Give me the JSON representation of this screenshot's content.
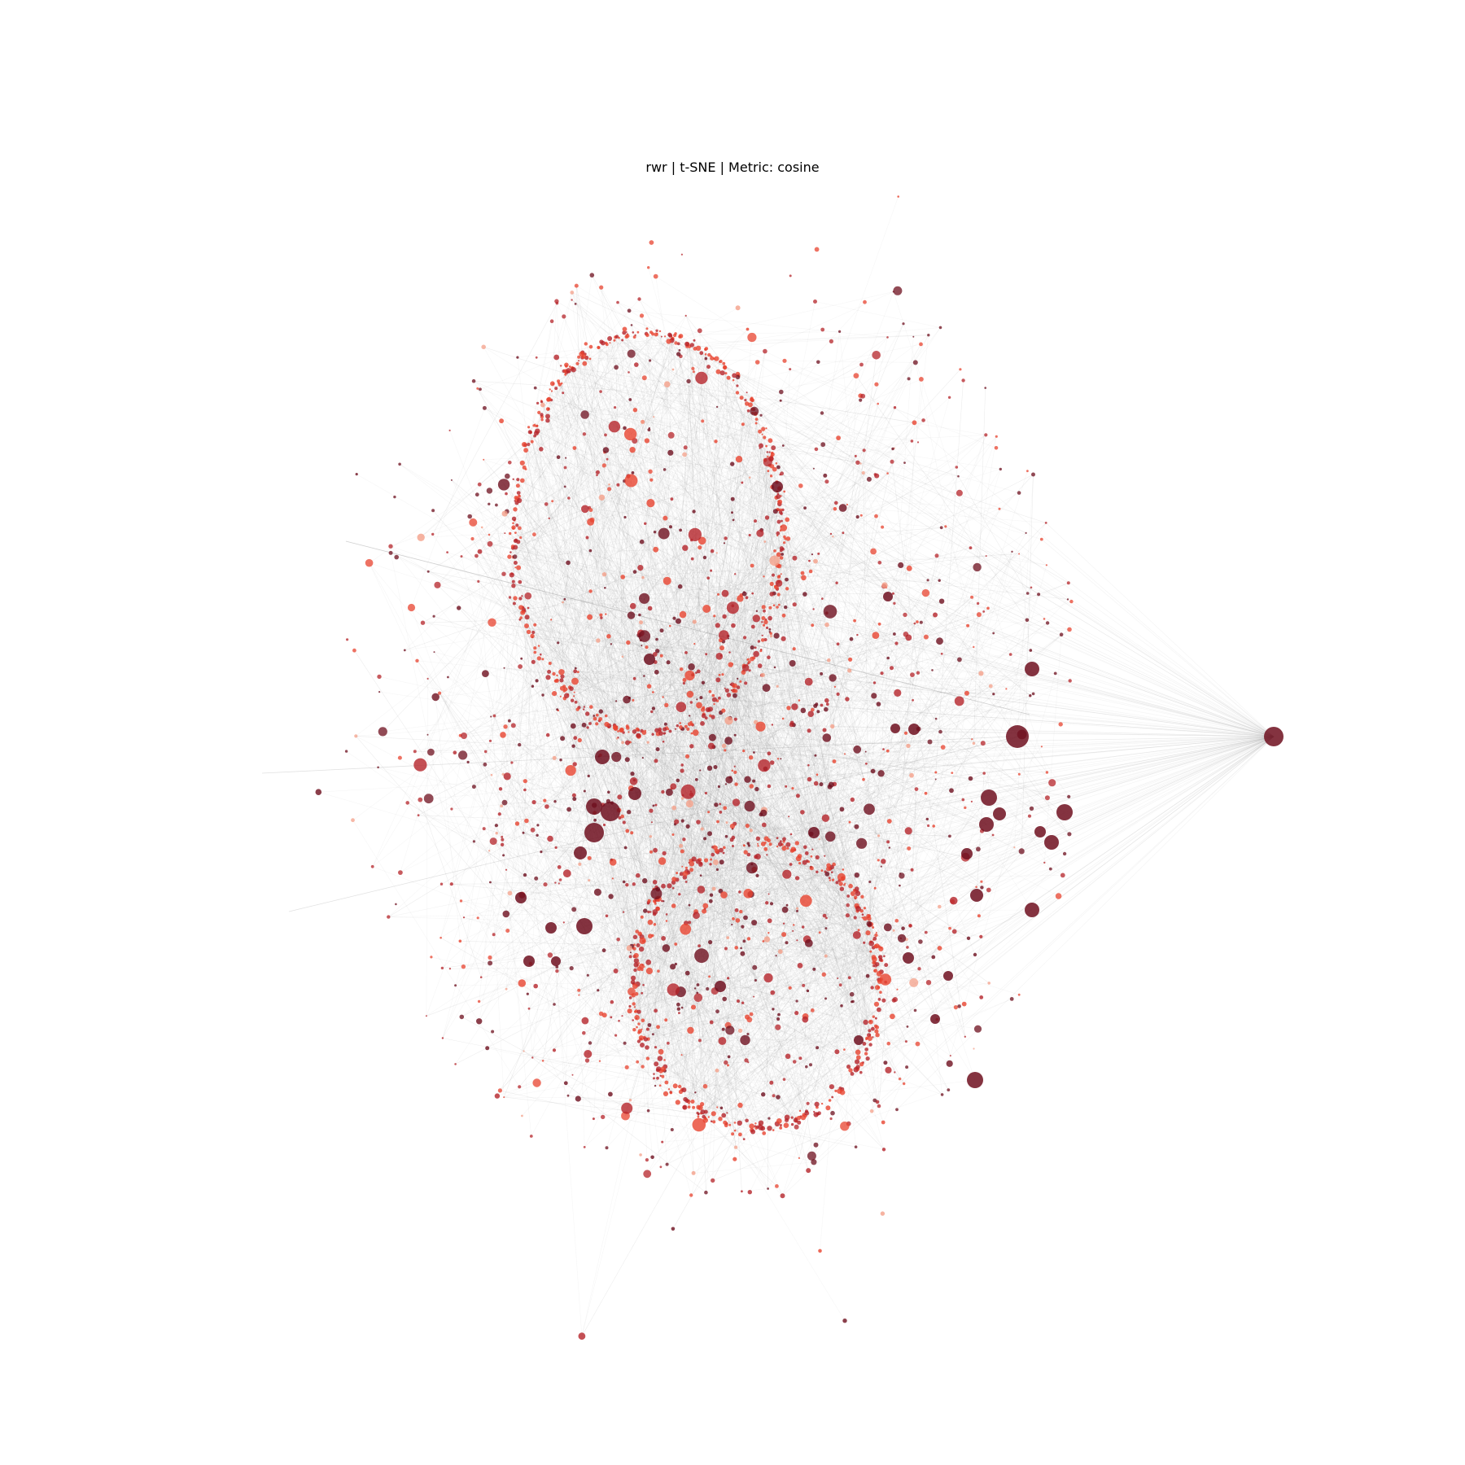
{
  "figure": {
    "title": "rwr | t-SNE | Metric: cosine"
  },
  "graph": {
    "layout": "t-SNE",
    "metric": "cosine",
    "method": "rwr",
    "edge_color": "#9a9a9a",
    "node_colors": {
      "high": "#6e0f1e",
      "mid": "#b5242a",
      "low": "#e8432f",
      "faint": "#f4a08a"
    },
    "clusters": [
      "upper-ring",
      "lower-ring",
      "central-core",
      "scattered-periphery"
    ],
    "hub_nodes": [
      "far-right-hub",
      "right-cluster-hub",
      "left-ring-hub"
    ]
  }
}
